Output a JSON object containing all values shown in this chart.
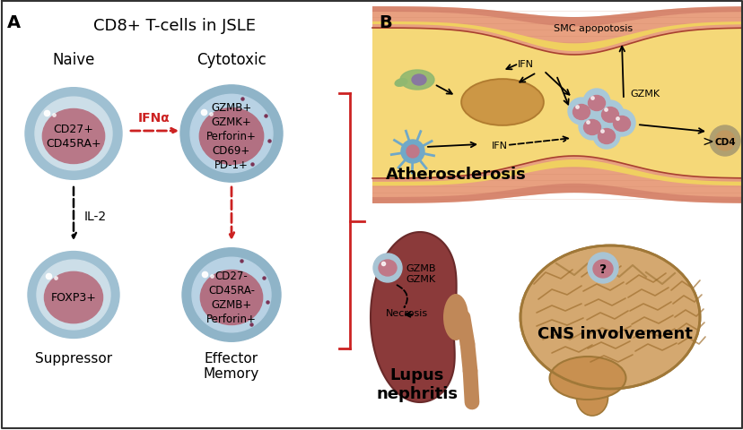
{
  "title_A": "CD8+ T-cells in JSLE",
  "label_A": "A",
  "label_B": "B",
  "naive_label": "Naive",
  "cytotoxic_label": "Cytotoxic",
  "suppressor_label": "Suppressor",
  "effector_label": "Effector\nMemory",
  "naive_text": "CD27+\nCD45RA+",
  "cytotoxic_text": "GZMB+\nGZMK+\nPerforin+\nCD69+\nPD-1+",
  "suppressor_text": "FOXP3+",
  "effector_text": "CD27-\nCD45RA-\nGZMB+\nPerforin+",
  "ifna_label": "IFNα",
  "il2_label": "IL-2",
  "atherosclerosis_label": "Atherosclerosis",
  "lupus_label": "Lupus\nnephritis",
  "cns_label": "CNS involvement",
  "smc_label": "SMC apopotosis",
  "ifn_label1": "IFN",
  "ifn_label2": "IFN",
  "gzmk_label": "GZMK",
  "cd4_label": "CD4",
  "gzmb_gzmk_label": "GZMB\nGZMK",
  "necrosis_label": "Necrosis",
  "bg_color": "#ffffff",
  "arrow_red_color": "#cc2222",
  "bracket_color": "#cc2222"
}
